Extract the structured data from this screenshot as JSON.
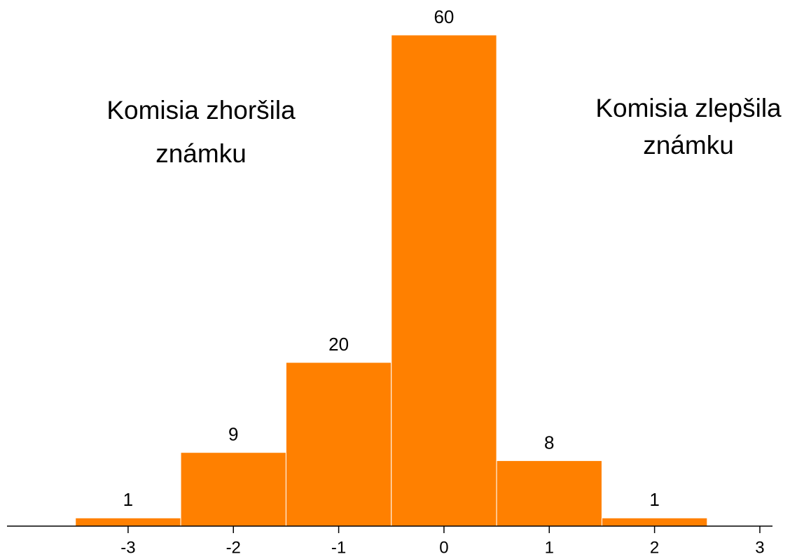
{
  "chart_data": {
    "type": "histogram",
    "bins": [
      -3.5,
      -2.5,
      -1.5,
      -0.5,
      0.5,
      1.5,
      2.5
    ],
    "values": [
      1,
      9,
      20,
      60,
      8,
      1
    ],
    "color": "#ff8000",
    "xlim": [
      -4.15,
      3.12
    ],
    "xticks": [
      -3,
      -2,
      -1,
      0,
      1,
      2,
      3
    ],
    "ylim": [
      0,
      60
    ],
    "annotations": [
      [
        "Komisia zhoršila",
        "známku"
      ],
      [
        "Komisia zlepšila",
        "známku"
      ]
    ]
  }
}
